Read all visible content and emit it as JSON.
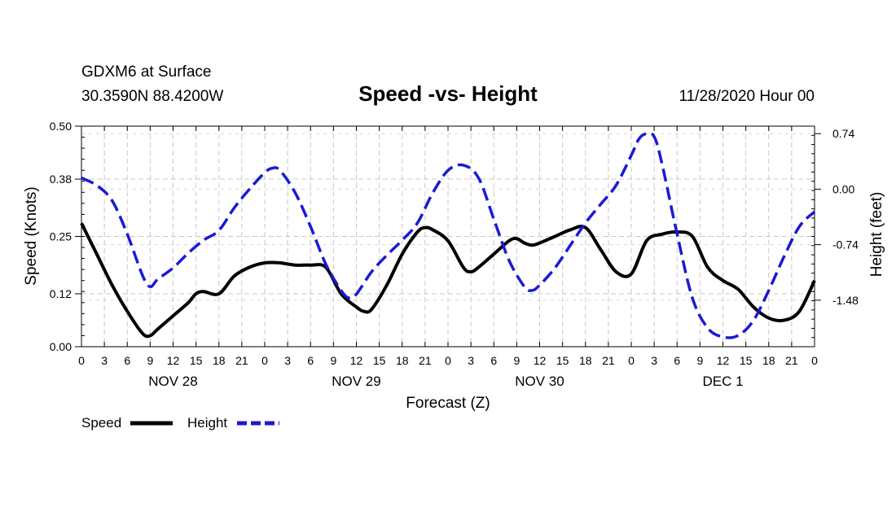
{
  "header": {
    "location": "GDXM6 at Surface",
    "coords": "30.3590N 88.4200W",
    "title": "Speed -vs- Height",
    "datetime": "11/28/2020 Hour 00"
  },
  "chart_data": {
    "type": "line",
    "title": "Speed -vs- Height",
    "xlabel": "Forecast (Z)",
    "ylabel_left": "Speed (Knots)",
    "ylabel_right": "Height (feet)",
    "x_ticks": [
      "0",
      "3",
      "6",
      "9",
      "12",
      "15",
      "18",
      "21",
      "0",
      "3",
      "6",
      "9",
      "12",
      "15",
      "18",
      "21",
      "0",
      "3",
      "6",
      "9",
      "12",
      "15",
      "18",
      "21",
      "0",
      "3",
      "6",
      "9",
      "12",
      "15",
      "18",
      "21",
      "0"
    ],
    "day_labels": [
      {
        "label": "NOV 28",
        "hour": 12
      },
      {
        "label": "NOV 29",
        "hour": 36
      },
      {
        "label": "NOV 30",
        "hour": 60
      },
      {
        "label": "DEC 1",
        "hour": 84
      }
    ],
    "x_range_hours": [
      0,
      96
    ],
    "left_axis": {
      "ylim": [
        0.0,
        0.5
      ],
      "ticks": [
        0.0,
        0.12,
        0.25,
        0.38,
        0.5
      ],
      "tick_labels": [
        "0.00",
        "0.12",
        "0.25",
        "0.38",
        "0.50"
      ]
    },
    "right_axis": {
      "ylim": [
        -2.1,
        0.84
      ],
      "ticks": [
        -1.48,
        -0.74,
        0.0,
        0.74
      ],
      "tick_labels": [
        "-1.48",
        "-0.74",
        "0.00",
        "0.74"
      ]
    },
    "grid": true,
    "series": [
      {
        "name": "Speed",
        "axis": "left",
        "color": "#000000",
        "style": "solid",
        "points": [
          [
            0,
            0.28
          ],
          [
            2,
            0.21
          ],
          [
            4,
            0.14
          ],
          [
            6,
            0.08
          ],
          [
            8,
            0.03
          ],
          [
            9,
            0.025
          ],
          [
            10,
            0.04
          ],
          [
            12,
            0.07
          ],
          [
            14,
            0.1
          ],
          [
            15,
            0.12
          ],
          [
            16,
            0.125
          ],
          [
            18,
            0.12
          ],
          [
            20,
            0.16
          ],
          [
            22,
            0.18
          ],
          [
            24,
            0.19
          ],
          [
            26,
            0.19
          ],
          [
            28,
            0.185
          ],
          [
            30,
            0.185
          ],
          [
            32,
            0.18
          ],
          [
            34,
            0.12
          ],
          [
            36,
            0.09
          ],
          [
            37,
            0.08
          ],
          [
            38,
            0.085
          ],
          [
            40,
            0.14
          ],
          [
            42,
            0.21
          ],
          [
            44,
            0.26
          ],
          [
            45,
            0.27
          ],
          [
            46,
            0.265
          ],
          [
            48,
            0.24
          ],
          [
            50,
            0.18
          ],
          [
            51,
            0.17
          ],
          [
            52,
            0.18
          ],
          [
            54,
            0.21
          ],
          [
            56,
            0.24
          ],
          [
            57,
            0.245
          ],
          [
            58,
            0.235
          ],
          [
            59,
            0.23
          ],
          [
            60,
            0.235
          ],
          [
            62,
            0.25
          ],
          [
            64,
            0.265
          ],
          [
            66,
            0.27
          ],
          [
            68,
            0.22
          ],
          [
            70,
            0.17
          ],
          [
            72,
            0.165
          ],
          [
            74,
            0.24
          ],
          [
            76,
            0.255
          ],
          [
            78,
            0.26
          ],
          [
            80,
            0.25
          ],
          [
            82,
            0.18
          ],
          [
            84,
            0.15
          ],
          [
            86,
            0.13
          ],
          [
            88,
            0.09
          ],
          [
            90,
            0.065
          ],
          [
            92,
            0.06
          ],
          [
            94,
            0.08
          ],
          [
            96,
            0.15
          ]
        ]
      },
      {
        "name": "Height",
        "axis": "right",
        "color": "#1a1ad4",
        "style": "dashed",
        "points": [
          [
            0,
            0.15
          ],
          [
            2,
            0.05
          ],
          [
            4,
            -0.15
          ],
          [
            6,
            -0.6
          ],
          [
            8,
            -1.15
          ],
          [
            9,
            -1.3
          ],
          [
            10,
            -1.2
          ],
          [
            12,
            -1.05
          ],
          [
            14,
            -0.85
          ],
          [
            16,
            -0.68
          ],
          [
            18,
            -0.55
          ],
          [
            20,
            -0.25
          ],
          [
            22,
            0.0
          ],
          [
            24,
            0.22
          ],
          [
            25,
            0.28
          ],
          [
            26,
            0.25
          ],
          [
            28,
            -0.05
          ],
          [
            30,
            -0.5
          ],
          [
            32,
            -1.0
          ],
          [
            34,
            -1.35
          ],
          [
            35,
            -1.45
          ],
          [
            36,
            -1.4
          ],
          [
            38,
            -1.1
          ],
          [
            40,
            -0.88
          ],
          [
            42,
            -0.68
          ],
          [
            44,
            -0.45
          ],
          [
            46,
            -0.05
          ],
          [
            48,
            0.25
          ],
          [
            50,
            0.32
          ],
          [
            52,
            0.15
          ],
          [
            54,
            -0.4
          ],
          [
            56,
            -0.95
          ],
          [
            58,
            -1.3
          ],
          [
            59,
            -1.35
          ],
          [
            60,
            -1.28
          ],
          [
            62,
            -1.05
          ],
          [
            64,
            -0.75
          ],
          [
            66,
            -0.45
          ],
          [
            68,
            -0.2
          ],
          [
            70,
            0.05
          ],
          [
            72,
            0.45
          ],
          [
            73,
            0.67
          ],
          [
            74,
            0.74
          ],
          [
            75,
            0.7
          ],
          [
            76,
            0.35
          ],
          [
            78,
            -0.6
          ],
          [
            80,
            -1.45
          ],
          [
            82,
            -1.85
          ],
          [
            84,
            -1.97
          ],
          [
            86,
            -1.95
          ],
          [
            88,
            -1.75
          ],
          [
            90,
            -1.35
          ],
          [
            92,
            -0.9
          ],
          [
            94,
            -0.5
          ],
          [
            96,
            -0.3
          ]
        ]
      }
    ],
    "legend": [
      {
        "label": "Speed",
        "color": "#000000",
        "style": "solid"
      },
      {
        "label": "Height",
        "color": "#1a1ad4",
        "style": "dashed"
      }
    ]
  }
}
